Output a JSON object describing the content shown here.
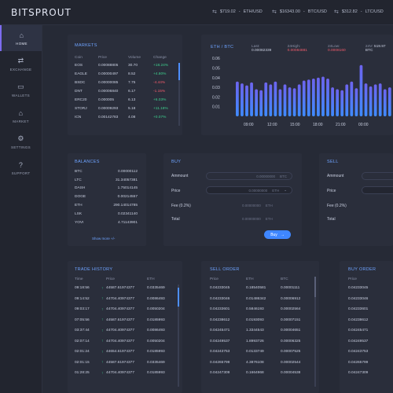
{
  "brand": {
    "name": "BITSPROUT"
  },
  "tickers": [
    {
      "value": "$719.02",
      "pair": "ETH/USD"
    },
    {
      "value": "$16343.00",
      "pair": "BTC/USD"
    },
    {
      "value": "$312.82",
      "pair": "LTC/USD"
    }
  ],
  "sidebar": {
    "items": [
      {
        "label": "HOME",
        "icon": "home-icon"
      },
      {
        "label": "EXCHANGE",
        "icon": "exchange-icon"
      },
      {
        "label": "WALLETS",
        "icon": "wallet-icon"
      },
      {
        "label": "MARKET",
        "icon": "market-icon"
      },
      {
        "label": "SETTINGS",
        "icon": "gear-icon"
      },
      {
        "label": "SUPPORT",
        "icon": "help-icon"
      }
    ]
  },
  "markets": {
    "title": "MARKETS",
    "headers": [
      "Coin",
      "Price",
      "Volume",
      "Change"
    ],
    "rows": [
      [
        "EOS",
        "0.00088805",
        "30.70",
        "+18.24%"
      ],
      [
        "EAGLE",
        "0.00000497",
        "8.52",
        "+4.80%"
      ],
      [
        "BSDC",
        "0.00000085",
        "7.75",
        "-4.44%"
      ],
      [
        "DNT",
        "0.00006840",
        "6.17",
        "-1.15%"
      ],
      [
        "ERC20",
        "0.000005",
        "6.13",
        "+6.03%"
      ],
      [
        "STORJ",
        "0.00009293",
        "5.18",
        "+11.18%"
      ],
      [
        "ICN",
        "0.00142783",
        "4.08",
        "+0.07%"
      ]
    ]
  },
  "chart": {
    "pair": "ETH / BTC",
    "last_label": "Last:",
    "last": "0.00082339",
    "high_label": "24High:",
    "high": "0.00084881",
    "low_label": "24Low:",
    "low": "0.0008160",
    "vol_label": "24V:",
    "vol": "519.97 BTC"
  },
  "chart_data": {
    "type": "bar",
    "yticks": [
      "0.06",
      "0.05",
      "0.04",
      "0.03",
      "0.02",
      "0.01"
    ],
    "ylim": [
      0,
      0.065
    ],
    "xticks": [
      "09:00",
      "12:00",
      "15:00",
      "18:00",
      "21:00",
      "00:00"
    ],
    "values": [
      0.036,
      0.034,
      0.032,
      0.035,
      0.028,
      0.027,
      0.035,
      0.033,
      0.036,
      0.028,
      0.033,
      0.03,
      0.029,
      0.033,
      0.037,
      0.038,
      0.039,
      0.04,
      0.041,
      0.039,
      0.03,
      0.028,
      0.027,
      0.033,
      0.036,
      0.029,
      0.053,
      0.034,
      0.031,
      0.033,
      0.034,
      0.028,
      0.03
    ],
    "color_top": "#6d64ee",
    "color_bottom": "#3f8bff"
  },
  "balances": {
    "title": "BALANCES",
    "rows": [
      [
        "BTC",
        "0.00000112"
      ],
      [
        "LTC",
        "31.34057381"
      ],
      [
        "DASH",
        "1.75014145"
      ],
      [
        "DOGE",
        "0.00214557"
      ],
      [
        "ETH",
        "290.14014785"
      ],
      [
        "LSK",
        "0.02341140"
      ],
      [
        "YOVI",
        "4.71143901"
      ]
    ],
    "show_more": "Show more +/-"
  },
  "buy": {
    "title": "BUY",
    "amount_label": "Ammount",
    "amount_value": "0.00000000",
    "amount_unit": "BTC",
    "price_label": "Price",
    "price_value": "0.00000000",
    "price_unit": "ETH",
    "fee_label": "Fee  (0.2%)",
    "fee_value": "0.00000000",
    "fee_unit": "ETH",
    "total_label": "Total",
    "total_value": "0.00000000",
    "total_unit": "ETH",
    "button": "Buy"
  },
  "sell": {
    "title": "SELL",
    "amount_label": "Ammount",
    "price_label": "Price",
    "fee_label": "Fee  (0.2%)",
    "total_label": "Total"
  },
  "trade_history": {
    "title": "TRADE HISTORY",
    "headers": [
      "Time",
      "Price",
      "ETH"
    ],
    "rows": [
      [
        "09:18:56",
        "44587.61974377",
        "0.0335469"
      ],
      [
        "09:14:52",
        "44704.40974377",
        "0.0086493"
      ],
      [
        "09:03:17",
        "44704.40974377",
        "0.0050204"
      ],
      [
        "07:05:56",
        "44587.61974377",
        "0.0185993"
      ],
      [
        "03:37:44",
        "44704.40974377",
        "0.0086493"
      ],
      [
        "02:07:14",
        "44704.40974377",
        "0.0050204"
      ],
      [
        "02:01:24",
        "44654.61974377",
        "0.0185993"
      ],
      [
        "02:01:15",
        "44587.61974377",
        "0.0335469"
      ],
      [
        "01:28:25",
        "44704.40974377",
        "0.0185993"
      ]
    ]
  },
  "sell_order": {
    "title": "SELL ORDER",
    "headers": [
      "Price",
      "ETH",
      "BTC"
    ],
    "rows": [
      [
        "0.04233045",
        "0.18540581",
        "0.00001111"
      ],
      [
        "0.04233046",
        "0.01486342",
        "0.00006912"
      ],
      [
        "0.04233601",
        "0.5846193",
        "0.00002564"
      ],
      [
        "0.04238612",
        "0.0193093",
        "0.00007151"
      ],
      [
        "0.04245471",
        "1.3344543",
        "0.00004651"
      ],
      [
        "0.04249537",
        "1.8993726",
        "0.00006325"
      ],
      [
        "0.04243753",
        "0.0133749",
        "0.00007525"
      ],
      [
        "0.04265799",
        "4.3876108",
        "0.00002544"
      ],
      [
        "0.04247309",
        "0.1664968",
        "0.00004538"
      ]
    ]
  },
  "buy_order": {
    "title": "BUY ORDER",
    "headers": [
      "Price"
    ],
    "rows": [
      [
        "0.04233045"
      ],
      [
        "0.04233046"
      ],
      [
        "0.04233601"
      ],
      [
        "0.04238612"
      ],
      [
        "0.04245471"
      ],
      [
        "0.04249537"
      ],
      [
        "0.04243753"
      ],
      [
        "0.04265799"
      ],
      [
        "0.04247309"
      ]
    ]
  }
}
